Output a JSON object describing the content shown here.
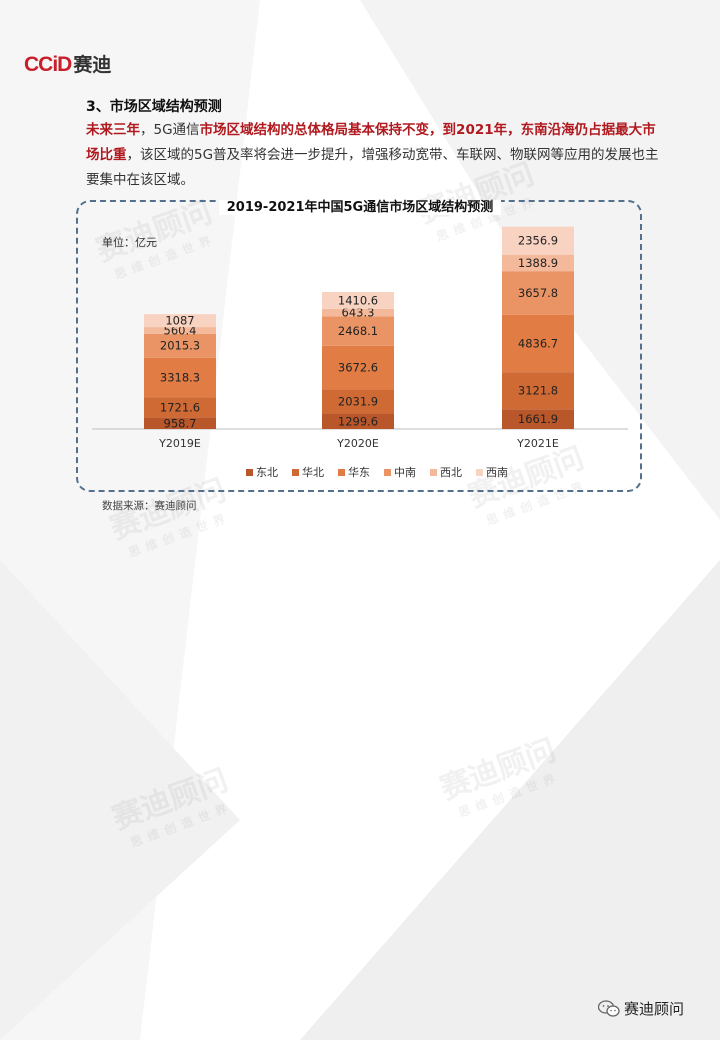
{
  "logo": {
    "mark": "CCiD",
    "cn": "赛迪"
  },
  "section_title": "3、市场区域结构预测",
  "paragraph": {
    "p1": "未来三年",
    "p2": "，5G通信",
    "p3": "市场区域结构的总体格局基本保持不变，到2021年，东南沿海仍占据最大市场比重",
    "p4": "，该区域的5G普及率将会进一步提升，增强移动宽带、车联网、物联网等应用的发展也主要集中在该区域。"
  },
  "unit_label": "单位：亿元",
  "source": "数据来源：赛迪顾问",
  "footer_text": "赛迪顾问",
  "watermark": {
    "big": "赛迪顾问",
    "small": "思维创造世界"
  },
  "chart_data": {
    "type": "bar",
    "stacked": true,
    "title": "2019-2021年中国5G通信市场区域结构预测",
    "categories": [
      "Y2019E",
      "Y2020E",
      "Y2021E"
    ],
    "series": [
      {
        "name": "东北",
        "color": "#b9572a",
        "values": [
          958.7,
          1299.6,
          1661.9
        ]
      },
      {
        "name": "华北",
        "color": "#cf6a35",
        "values": [
          1721.6,
          2031.9,
          3121.8
        ]
      },
      {
        "name": "华东",
        "color": "#e07c44",
        "values": [
          3318.3,
          3672.6,
          4836.7
        ]
      },
      {
        "name": "中南",
        "color": "#ea9465",
        "values": [
          2015.3,
          2468.1,
          3657.8
        ]
      },
      {
        "name": "西北",
        "color": "#f3b99a",
        "values": [
          560.4,
          643.3,
          1388.9
        ]
      },
      {
        "name": "西南",
        "color": "#f8d3c2",
        "values": [
          1087,
          1410.6,
          2356.9
        ]
      }
    ],
    "ylabel": "单位：亿元",
    "legend_position": "bottom",
    "grid": false
  }
}
